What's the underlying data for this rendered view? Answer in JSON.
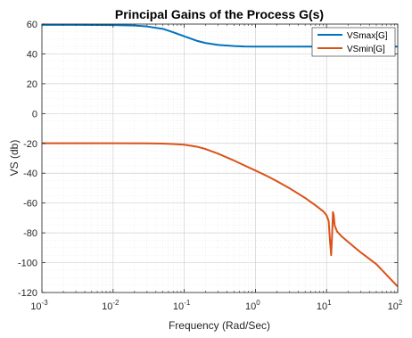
{
  "chart_data": {
    "type": "line",
    "title": "Principal Gains of the Process G(s)",
    "xlabel": "Frequency (Rad/Sec)",
    "ylabel": "VS (db)",
    "xscale": "log",
    "xlim": [
      0.001,
      100
    ],
    "ylim": [
      -120,
      60
    ],
    "grid": "on (major and minor)",
    "legend_position": "top-right",
    "x_ticks": [
      {
        "value": 0.001,
        "base": "10",
        "exp": "-3"
      },
      {
        "value": 0.01,
        "base": "10",
        "exp": "-2"
      },
      {
        "value": 0.1,
        "base": "10",
        "exp": "-1"
      },
      {
        "value": 1,
        "base": "10",
        "exp": "0"
      },
      {
        "value": 10,
        "base": "10",
        "exp": "1"
      },
      {
        "value": 100,
        "base": "10",
        "exp": "2"
      }
    ],
    "y_ticks": [
      {
        "value": 60,
        "label": "60"
      },
      {
        "value": 40,
        "label": "40"
      },
      {
        "value": 20,
        "label": "20"
      },
      {
        "value": 0,
        "label": "0"
      },
      {
        "value": -20,
        "label": "-20"
      },
      {
        "value": -40,
        "label": "-40"
      },
      {
        "value": -60,
        "label": "-60"
      },
      {
        "value": -80,
        "label": "-80"
      },
      {
        "value": -100,
        "label": "-100"
      },
      {
        "value": -120,
        "label": "-120"
      }
    ],
    "series": [
      {
        "name": "VSmax[G]",
        "color": "#0072BD",
        "x": [
          0.001,
          0.003,
          0.01,
          0.02,
          0.03,
          0.05,
          0.07,
          0.1,
          0.15,
          0.2,
          0.3,
          0.5,
          0.7,
          1,
          2,
          5,
          10,
          20,
          50,
          100
        ],
        "y": [
          59.5,
          59.5,
          59.3,
          59.0,
          58.4,
          56.8,
          54.5,
          51.8,
          48.8,
          47.3,
          46.0,
          45.3,
          45.0,
          44.9,
          44.9,
          44.9,
          44.9,
          44.9,
          44.9,
          44.9
        ]
      },
      {
        "name": "VSmin[G]",
        "color": "#D95319",
        "x": [
          0.001,
          0.003,
          0.01,
          0.03,
          0.05,
          0.07,
          0.1,
          0.15,
          0.2,
          0.3,
          0.5,
          0.7,
          1,
          1.5,
          2,
          3,
          5,
          7,
          9,
          10,
          10.7,
          11.2,
          11.6,
          12.0,
          12.3,
          12.6,
          13,
          14,
          16,
          20,
          30,
          50,
          100
        ],
        "y": [
          -19.9,
          -19.9,
          -19.9,
          -20.0,
          -20.1,
          -20.4,
          -20.9,
          -22.2,
          -23.8,
          -26.9,
          -31.5,
          -34.8,
          -38.2,
          -42.2,
          -45.3,
          -50.0,
          -56.6,
          -61.6,
          -65.6,
          -68.2,
          -72.0,
          -86.0,
          -95.0,
          -80.0,
          -66.0,
          -68.0,
          -75.0,
          -79.0,
          -82.0,
          -86.0,
          -93.0,
          -101.0,
          -116.0
        ]
      }
    ]
  }
}
